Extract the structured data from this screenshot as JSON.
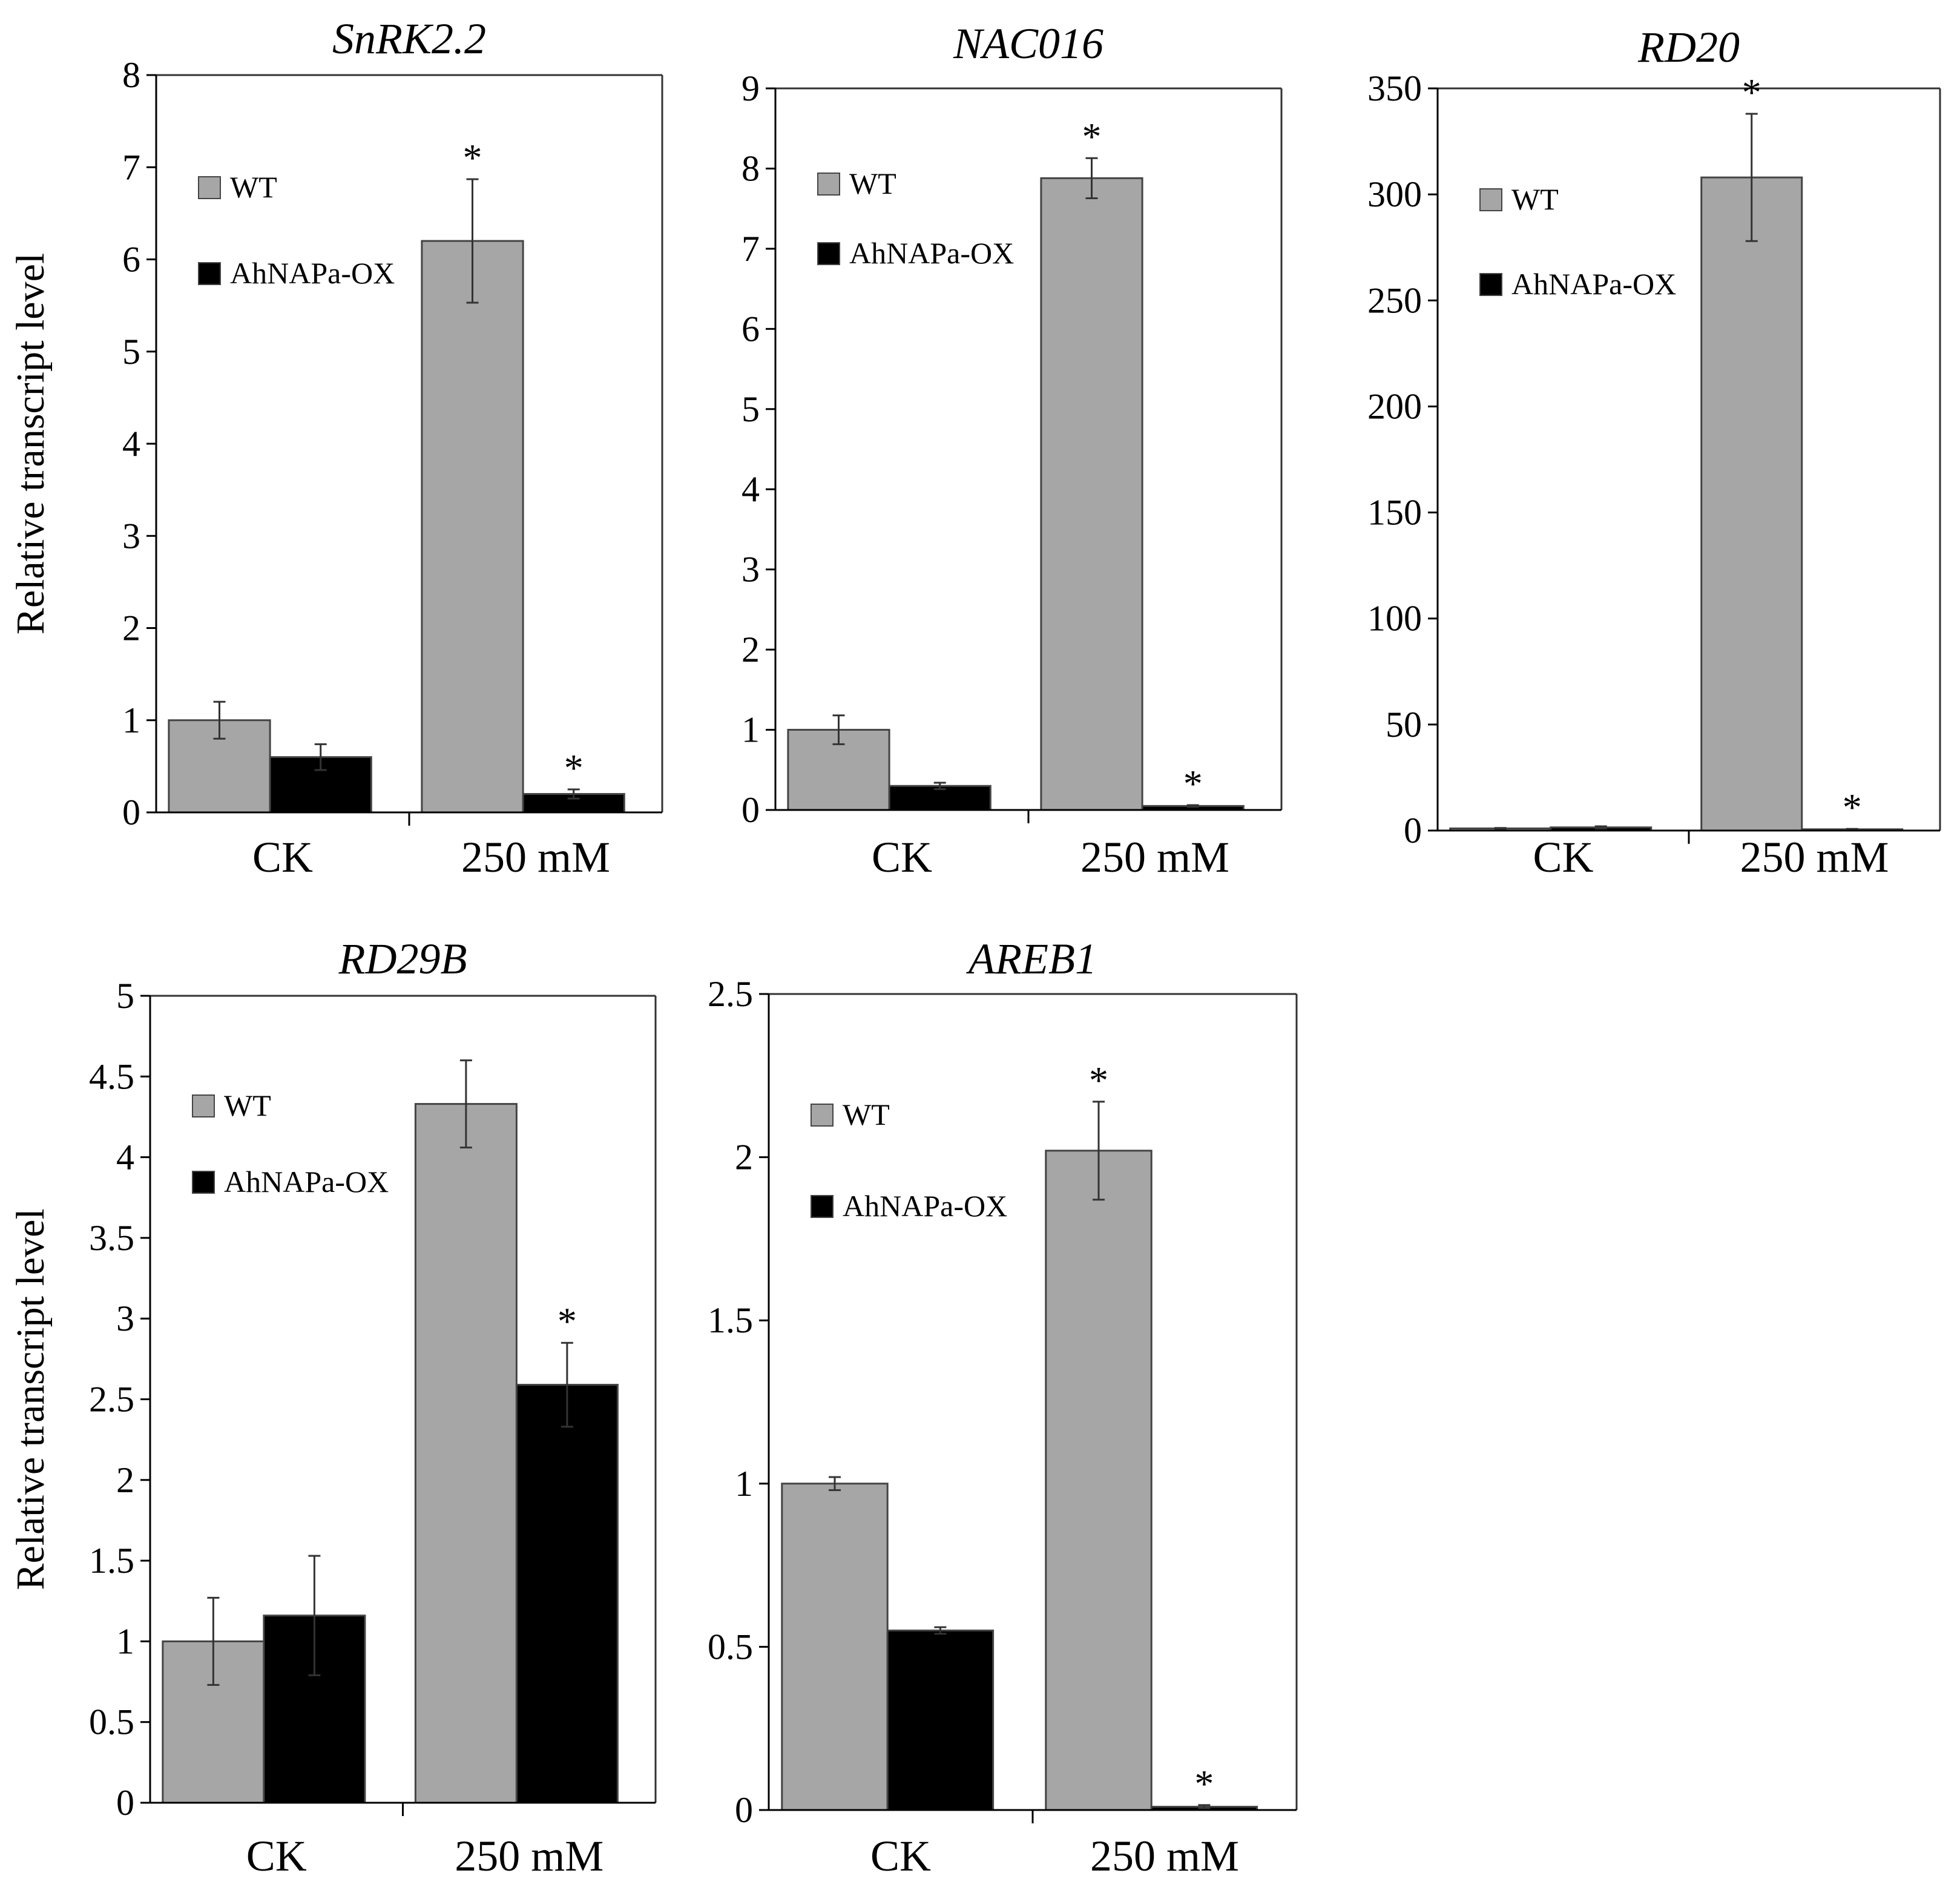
{
  "figure": {
    "ylabel": "Relative transcript level",
    "categories": [
      "CK",
      "250 mM"
    ],
    "legend": [
      "WT",
      "AhNAPa-OX"
    ]
  },
  "colors": {
    "wt": "#a6a6a6",
    "ox": "#000000",
    "axis": "#000000",
    "frame": "#333333"
  },
  "chart_data": [
    {
      "type": "bar",
      "title": "SnRK2.2",
      "ylabel": "Relative transcript level",
      "ylim": [
        0,
        8
      ],
      "yticks": [
        "0",
        "1",
        "2",
        "3",
        "4",
        "5",
        "6",
        "7",
        "8"
      ],
      "categories": [
        "CK",
        "250 mM"
      ],
      "series": [
        {
          "name": "WT",
          "values": [
            1.0,
            6.2
          ],
          "errors": [
            0.2,
            0.67
          ]
        },
        {
          "name": "AhNAPa-OX",
          "values": [
            0.6,
            0.2
          ],
          "errors": [
            0.14,
            0.05
          ]
        }
      ],
      "significance": [
        [
          false,
          true
        ],
        [
          false,
          true
        ]
      ]
    },
    {
      "type": "bar",
      "title": "NAC016",
      "ylabel": "",
      "ylim": [
        0,
        9
      ],
      "yticks": [
        "0",
        "1",
        "2",
        "3",
        "4",
        "5",
        "6",
        "7",
        "8",
        "9"
      ],
      "categories": [
        "CK",
        "250 mM"
      ],
      "series": [
        {
          "name": "WT",
          "values": [
            1.0,
            7.88
          ],
          "errors": [
            0.18,
            0.25
          ]
        },
        {
          "name": "AhNAPa-OX",
          "values": [
            0.3,
            0.05
          ],
          "errors": [
            0.04,
            0.01
          ]
        }
      ],
      "significance": [
        [
          false,
          true
        ],
        [
          false,
          true
        ]
      ]
    },
    {
      "type": "bar",
      "title": "RD20",
      "ylabel": "",
      "ylim": [
        0,
        350
      ],
      "yticks": [
        "0",
        "50",
        "100",
        "150",
        "200",
        "250",
        "300",
        "350"
      ],
      "categories": [
        "CK",
        "250 mM"
      ],
      "series": [
        {
          "name": "WT",
          "values": [
            1.0,
            308
          ],
          "errors": [
            0.2,
            30
          ]
        },
        {
          "name": "AhNAPa-OX",
          "values": [
            1.5,
            0.6
          ],
          "errors": [
            0.5,
            0.2
          ]
        }
      ],
      "significance": [
        [
          false,
          true
        ],
        [
          false,
          true
        ]
      ]
    },
    {
      "type": "bar",
      "title": "RD29B",
      "ylabel": "Relative transcript level",
      "ylim": [
        0,
        5
      ],
      "yticks": [
        "0",
        "0.5",
        "1",
        "1.5",
        "2",
        "2.5",
        "3",
        "3.5",
        "4",
        "4.5",
        "5"
      ],
      "categories": [
        "CK",
        "250 mM"
      ],
      "series": [
        {
          "name": "WT",
          "values": [
            1.0,
            4.33
          ],
          "errors": [
            0.27,
            0.27
          ]
        },
        {
          "name": "AhNAPa-OX",
          "values": [
            1.16,
            2.59
          ],
          "errors": [
            0.37,
            0.26
          ]
        }
      ],
      "significance": [
        [
          false,
          false
        ],
        [
          false,
          true
        ]
      ]
    },
    {
      "type": "bar",
      "title": "AREB1",
      "ylabel": "",
      "ylim": [
        0,
        2.5
      ],
      "yticks": [
        "0",
        "0.5",
        "1",
        "1.5",
        "2",
        "2.5"
      ],
      "categories": [
        "CK",
        "250 mM"
      ],
      "series": [
        {
          "name": "WT",
          "values": [
            1.0,
            2.02
          ],
          "errors": [
            0.02,
            0.15
          ]
        },
        {
          "name": "AhNAPa-OX",
          "values": [
            0.55,
            0.01
          ],
          "errors": [
            0.01,
            0.005
          ]
        }
      ],
      "significance": [
        [
          false,
          true
        ],
        [
          false,
          true
        ]
      ]
    }
  ]
}
